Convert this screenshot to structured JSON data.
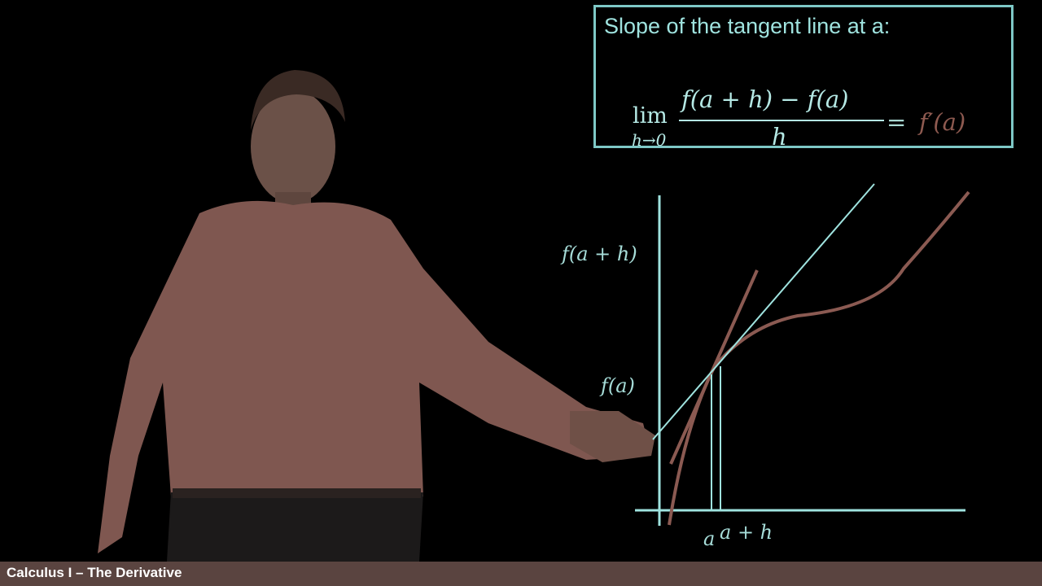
{
  "box": {
    "title": "Slope of the tangent line at a:",
    "lim_word": "lim",
    "lim_sub": "h→0",
    "numerator": "f(a + h) − f(a)",
    "denominator": "h",
    "equals": "=",
    "result": "f′(a)"
  },
  "graph": {
    "label_f_a_plus_h": "f(a + h)",
    "label_f_a": "f(a)",
    "label_a": "a",
    "label_a_plus_h": "a + h"
  },
  "footer": {
    "title": "Calculus I – The Derivative"
  },
  "colors": {
    "chalk_teal": "#9fe3df",
    "curve_brown": "#8b5a52",
    "shirt": "#8a5d55",
    "footer_bg": "#5a4440"
  }
}
